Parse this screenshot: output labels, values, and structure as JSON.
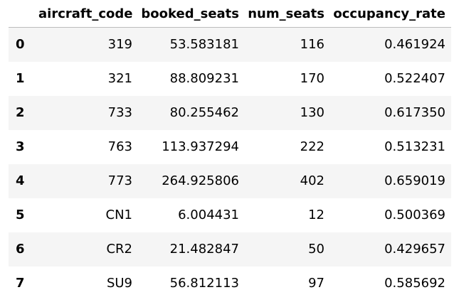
{
  "table": {
    "columns": [
      "",
      "aircraft_code",
      "booked_seats",
      "num_seats",
      "occupancy_rate"
    ],
    "rows": [
      {
        "index": "0",
        "aircraft_code": "319",
        "booked_seats": "53.583181",
        "num_seats": "116",
        "occupancy_rate": "0.461924"
      },
      {
        "index": "1",
        "aircraft_code": "321",
        "booked_seats": "88.809231",
        "num_seats": "170",
        "occupancy_rate": "0.522407"
      },
      {
        "index": "2",
        "aircraft_code": "733",
        "booked_seats": "80.255462",
        "num_seats": "130",
        "occupancy_rate": "0.617350"
      },
      {
        "index": "3",
        "aircraft_code": "763",
        "booked_seats": "113.937294",
        "num_seats": "222",
        "occupancy_rate": "0.513231"
      },
      {
        "index": "4",
        "aircraft_code": "773",
        "booked_seats": "264.925806",
        "num_seats": "402",
        "occupancy_rate": "0.659019"
      },
      {
        "index": "5",
        "aircraft_code": "CN1",
        "booked_seats": "6.004431",
        "num_seats": "12",
        "occupancy_rate": "0.500369"
      },
      {
        "index": "6",
        "aircraft_code": "CR2",
        "booked_seats": "21.482847",
        "num_seats": "50",
        "occupancy_rate": "0.429657"
      },
      {
        "index": "7",
        "aircraft_code": "SU9",
        "booked_seats": "56.812113",
        "num_seats": "97",
        "occupancy_rate": "0.585692"
      }
    ]
  }
}
